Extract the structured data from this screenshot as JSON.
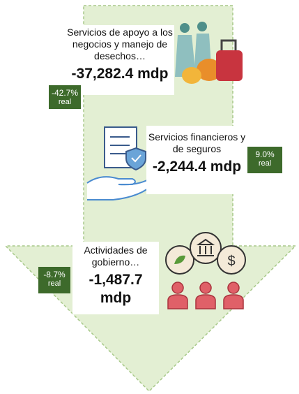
{
  "items": [
    {
      "label": "Servicios de apoyo a los negocios y manejo de desechos…",
      "value": "-37,282.4 mdp",
      "change": "-42.7%",
      "change_note": "real"
    },
    {
      "label": "Servicios financieros y de seguros",
      "value": "-2,244.4 mdp",
      "change": "9.0%",
      "change_note": "real"
    },
    {
      "label": "Actividades de gobierno…",
      "value": "-1,487.7 mdp",
      "change": "-8.7%",
      "change_note": "real"
    }
  ]
}
